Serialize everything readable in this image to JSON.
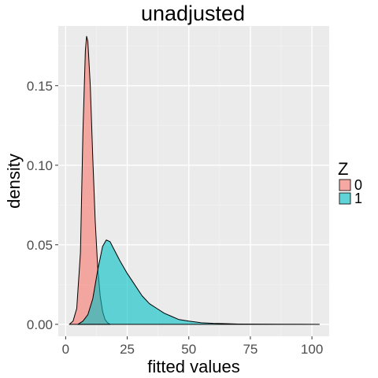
{
  "chart_data": {
    "type": "area",
    "title": "unadjusted",
    "xlabel": "fitted values",
    "ylabel": "density",
    "xlim": [
      -3,
      107
    ],
    "ylim": [
      -0.0075,
      0.1875
    ],
    "x_ticks": [
      0,
      25,
      50,
      75,
      100
    ],
    "y_ticks": [
      0.0,
      0.05,
      0.1,
      0.15
    ],
    "x_tick_labels": [
      "0",
      "25",
      "50",
      "75",
      "100"
    ],
    "y_tick_labels": [
      "0.00",
      "0.05",
      "0.10",
      "0.15"
    ],
    "grid": true,
    "legend": {
      "title": "Z",
      "placement": "right"
    },
    "series": [
      {
        "name": "0",
        "color": "#F8766D",
        "points": [
          [
            1.5,
            0.0
          ],
          [
            3,
            0.002
          ],
          [
            4.5,
            0.01
          ],
          [
            6,
            0.045
          ],
          [
            7,
            0.12
          ],
          [
            8,
            0.172
          ],
          [
            8.5,
            0.181
          ],
          [
            9,
            0.178
          ],
          [
            10,
            0.15
          ],
          [
            11,
            0.105
          ],
          [
            12,
            0.065
          ],
          [
            13,
            0.036
          ],
          [
            14,
            0.018
          ],
          [
            15,
            0.008
          ],
          [
            16,
            0.003
          ],
          [
            17,
            0.001
          ],
          [
            18,
            0.0
          ]
        ]
      },
      {
        "name": "1",
        "color": "#00BFC4",
        "points": [
          [
            5,
            0.0
          ],
          [
            7,
            0.002
          ],
          [
            9,
            0.006
          ],
          [
            11,
            0.016
          ],
          [
            13,
            0.034
          ],
          [
            15,
            0.049
          ],
          [
            16.5,
            0.053
          ],
          [
            18,
            0.052
          ],
          [
            20,
            0.046
          ],
          [
            22,
            0.04
          ],
          [
            25,
            0.032
          ],
          [
            28,
            0.025
          ],
          [
            31,
            0.018
          ],
          [
            34,
            0.013
          ],
          [
            37,
            0.01
          ],
          [
            40,
            0.007
          ],
          [
            43,
            0.005
          ],
          [
            46,
            0.003
          ],
          [
            50,
            0.002
          ],
          [
            55,
            0.001
          ],
          [
            60,
            0.0006
          ],
          [
            65,
            0.0004
          ],
          [
            70,
            0.0002
          ],
          [
            80,
            0.0001
          ],
          [
            90,
            5e-05
          ],
          [
            103,
            0.0
          ]
        ]
      }
    ]
  }
}
